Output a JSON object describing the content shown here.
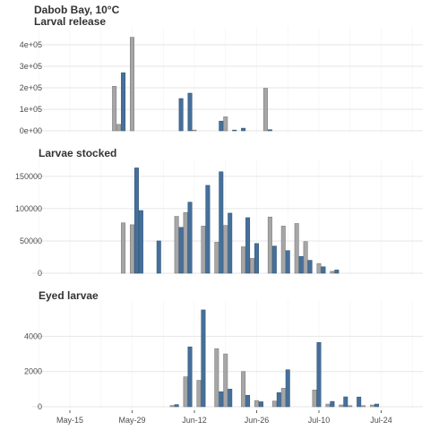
{
  "figure": {
    "title_line1": "Dabob Bay, 10°C",
    "colors": {
      "gray": "#a6a6a6",
      "blue": "#46709a",
      "grid": "#e6e6e6"
    }
  },
  "chart_data": [
    {
      "type": "bar",
      "title": "Larval release",
      "xlabel": "",
      "ylabel": "",
      "ylim": [
        0,
        450000
      ],
      "yticks": [
        0,
        100000,
        200000,
        300000,
        400000
      ],
      "ytick_labels": [
        "0e+00",
        "1e+05",
        "2e+05",
        "3e+05",
        "4e+05"
      ],
      "grid": true,
      "series": [
        {
          "color": "gray",
          "points": [
            [
              "2023-05-25",
              207000
            ],
            [
              "2023-05-26",
              30000
            ],
            [
              "2023-05-29",
              435000
            ],
            [
              "2023-06-12",
              0
            ],
            [
              "2023-06-19",
              65000
            ],
            [
              "2023-06-28",
              198000
            ]
          ]
        },
        {
          "color": "blue",
          "points": [
            [
              "2023-05-27",
              270000
            ],
            [
              "2023-06-09",
              150000
            ],
            [
              "2023-06-11",
              175000
            ],
            [
              "2023-06-18",
              45000
            ],
            [
              "2023-06-21",
              3000
            ],
            [
              "2023-06-23",
              12000
            ],
            [
              "2023-06-29",
              5000
            ]
          ]
        }
      ]
    },
    {
      "type": "bar",
      "title": "Larvae stocked",
      "xlabel": "",
      "ylabel": "",
      "ylim": [
        0,
        165000
      ],
      "yticks": [
        0,
        50000,
        100000,
        150000
      ],
      "ytick_labels": [
        "0",
        "50000",
        "100000",
        "150000"
      ],
      "grid": true,
      "series": [
        {
          "color": "gray",
          "points": [
            [
              "2023-05-27",
              78000
            ],
            [
              "2023-05-29",
              75000
            ],
            [
              "2023-05-30",
              62000
            ],
            [
              "2023-06-08",
              88000
            ],
            [
              "2023-06-10",
              94000
            ],
            [
              "2023-06-14",
              73000
            ],
            [
              "2023-06-17",
              48000
            ],
            [
              "2023-06-19",
              74000
            ],
            [
              "2023-06-23",
              41000
            ],
            [
              "2023-06-25",
              23000
            ],
            [
              "2023-06-29",
              87000
            ],
            [
              "2023-07-02",
              73000
            ],
            [
              "2023-07-05",
              77000
            ],
            [
              "2023-07-07",
              49000
            ],
            [
              "2023-07-10",
              15000
            ],
            [
              "2023-07-13",
              3000
            ]
          ]
        },
        {
          "color": "blue",
          "points": [
            [
              "2023-05-30",
              163000
            ],
            [
              "2023-05-31",
              97000
            ],
            [
              "2023-06-04",
              50000
            ],
            [
              "2023-06-09",
              71000
            ],
            [
              "2023-06-11",
              110000
            ],
            [
              "2023-06-15",
              136000
            ],
            [
              "2023-06-18",
              157000
            ],
            [
              "2023-06-20",
              93000
            ],
            [
              "2023-06-24",
              86000
            ],
            [
              "2023-06-26",
              46000
            ],
            [
              "2023-06-30",
              42000
            ],
            [
              "2023-07-03",
              35000
            ],
            [
              "2023-07-06",
              26000
            ],
            [
              "2023-07-08",
              20000
            ],
            [
              "2023-07-11",
              10000
            ],
            [
              "2023-07-14",
              5000
            ]
          ]
        }
      ]
    },
    {
      "type": "bar",
      "title": "Eyed larvae",
      "xlabel": "",
      "ylabel": "",
      "ylim": [
        0,
        5600
      ],
      "yticks": [
        0,
        2000,
        4000
      ],
      "ytick_labels": [
        "0",
        "2000",
        "4000"
      ],
      "grid": true,
      "x_ticks": [
        "2023-05-15",
        "2023-05-29",
        "2023-06-12",
        "2023-06-26",
        "2023-07-10",
        "2023-07-24"
      ],
      "x_tick_labels": [
        "May-15",
        "May-29",
        "Jun-12",
        "Jun-26",
        "Jul-10",
        "Jul-24"
      ],
      "series": [
        {
          "color": "gray",
          "points": [
            [
              "2023-06-07",
              70
            ],
            [
              "2023-06-10",
              1700
            ],
            [
              "2023-06-13",
              1500
            ],
            [
              "2023-06-17",
              3300
            ],
            [
              "2023-06-19",
              3000
            ],
            [
              "2023-06-23",
              2000
            ],
            [
              "2023-06-26",
              350
            ],
            [
              "2023-06-30",
              320
            ],
            [
              "2023-07-02",
              1050
            ],
            [
              "2023-07-09",
              950
            ],
            [
              "2023-07-12",
              150
            ],
            [
              "2023-07-15",
              100
            ],
            [
              "2023-07-17",
              60
            ],
            [
              "2023-07-20",
              60
            ],
            [
              "2023-07-22",
              100
            ]
          ]
        },
        {
          "color": "blue",
          "points": [
            [
              "2023-06-08",
              120
            ],
            [
              "2023-06-11",
              3400
            ],
            [
              "2023-06-14",
              5500
            ],
            [
              "2023-06-18",
              850
            ],
            [
              "2023-06-20",
              1000
            ],
            [
              "2023-06-24",
              650
            ],
            [
              "2023-06-27",
              280
            ],
            [
              "2023-07-01",
              800
            ],
            [
              "2023-07-03",
              2100
            ],
            [
              "2023-07-10",
              3650
            ],
            [
              "2023-07-13",
              300
            ],
            [
              "2023-07-16",
              560
            ],
            [
              "2023-07-19",
              550
            ],
            [
              "2023-07-23",
              150
            ]
          ]
        }
      ]
    }
  ]
}
